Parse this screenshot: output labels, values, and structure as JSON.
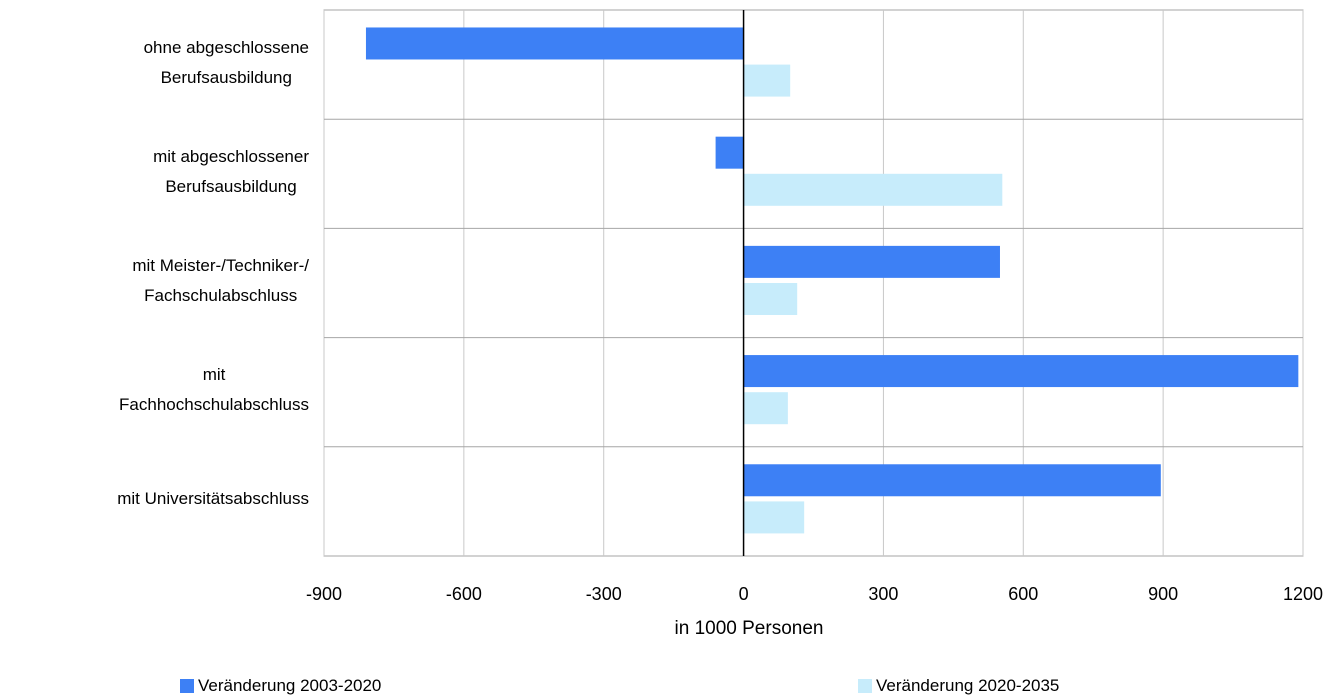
{
  "chart_data": {
    "type": "bar",
    "orientation": "horizontal",
    "title": "",
    "xlabel": "in 1000 Personen",
    "ylabel": "",
    "xlim": [
      -900,
      1200
    ],
    "x_ticks": [
      -900,
      -600,
      -300,
      0,
      300,
      600,
      900,
      1200
    ],
    "x_tick_labels": [
      "-900",
      "-600",
      "-300",
      "0",
      "300",
      "600",
      "900",
      "1200"
    ],
    "grid": true,
    "legend_position": "bottom",
    "categories": [
      [
        "ohne abgeschlossene",
        "Berufsausbildung"
      ],
      [
        "mit abgeschlossener",
        "Berufsausbildung"
      ],
      [
        "mit Meister-/Techniker-/",
        "Fachschulabschluss"
      ],
      [
        "mit",
        "Fachhochschulabschluss"
      ],
      [
        "mit Universitätsabschluss"
      ]
    ],
    "series": [
      {
        "name": "Veränderung 2003-2020",
        "color": "#3d80f5",
        "values": [
          -810,
          -60,
          550,
          1190,
          895
        ]
      },
      {
        "name": "Veränderung 2020-2035",
        "color": "#c7ecfb",
        "values": [
          100,
          555,
          115,
          95,
          130
        ]
      }
    ]
  }
}
